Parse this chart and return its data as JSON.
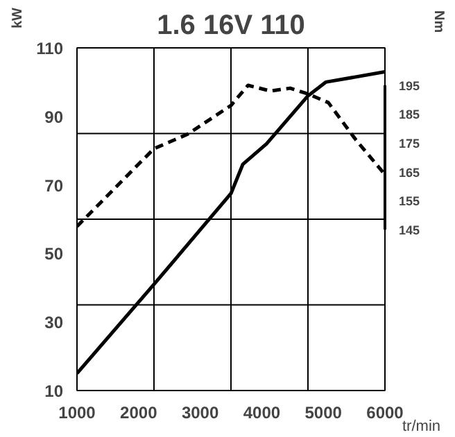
{
  "chart_data": {
    "type": "line",
    "title": "1.6 16V 110",
    "xlabel": "tr/min",
    "ylabel": "kW",
    "y2label": "Nm",
    "xlim": [
      1000,
      6000
    ],
    "xticks": [
      1000,
      2000,
      3000,
      4000,
      5000,
      6000
    ],
    "ylim": [
      10,
      110
    ],
    "yticks": [
      10,
      30,
      50,
      70,
      90,
      110
    ],
    "y2lim": [
      89,
      208
    ],
    "y2ticks": [
      145,
      155,
      165,
      175,
      185,
      195
    ],
    "grid": false,
    "ref_lines": [
      {
        "axis": "x",
        "value": 2250,
        "color": "#000000"
      },
      {
        "axis": "x",
        "value": 3500,
        "color": "#000000"
      },
      {
        "axis": "x",
        "value": 4750,
        "color": "#000000"
      },
      {
        "axis": "y",
        "value": 35,
        "color": "#000000"
      },
      {
        "axis": "y",
        "value": 60,
        "color": "#000000"
      },
      {
        "axis": "y",
        "value": 85,
        "color": "#000000"
      }
    ],
    "series": [
      {
        "color": "#000000",
        "line_style": "solid",
        "x": [
          1000,
          2250,
          3500,
          3692,
          4077,
          4750,
          5038,
          6000
        ],
        "values": [
          15,
          41,
          67.5,
          76,
          82,
          96,
          100,
          103
        ]
      },
      {
        "color": "#000000",
        "line_style": "dashed",
        "axis": "y2",
        "x": [
          1000,
          2250,
          2795,
          3500,
          3778,
          4141,
          4462,
          4750,
          5081,
          5530,
          6000
        ],
        "values": [
          146,
          173,
          178,
          188,
          195,
          193,
          194,
          192,
          189,
          176,
          164
        ]
      }
    ]
  }
}
